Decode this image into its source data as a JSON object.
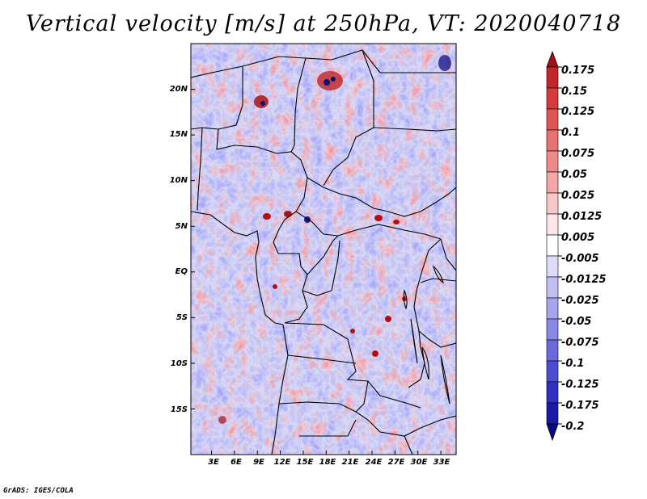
{
  "title": "Vertical velocity [m/s] at 250hPa, VT: 2020040718",
  "footer": "GrADS: IGES/COLA",
  "map": {
    "lat_ticks": [
      "20N",
      "15N",
      "10N",
      "5N",
      "EQ",
      "5S",
      "10S",
      "15S"
    ],
    "lon_ticks": [
      "3E",
      "6E",
      "9E",
      "12E",
      "15E",
      "18E",
      "21E",
      "24E",
      "27E",
      "30E",
      "33E"
    ],
    "lon_range": [
      0,
      35
    ],
    "lat_range": [
      -20,
      25
    ]
  },
  "colorbar": {
    "labels": [
      "0.175",
      "0.15",
      "0.125",
      "0.1",
      "0.075",
      "0.05",
      "0.025",
      "0.0125",
      "0.005",
      "-0.005",
      "-0.0125",
      "-0.025",
      "-0.05",
      "-0.075",
      "-0.1",
      "-0.125",
      "-0.175",
      "-0.2"
    ],
    "colors": [
      "#a50f15",
      "#c0262b",
      "#d73a3a",
      "#e05555",
      "#e87070",
      "#ee8a8a",
      "#f4a6a6",
      "#f8c8c8",
      "#fce6e6",
      "#ffffff",
      "#dcdcfa",
      "#c0c0f5",
      "#a5a5ee",
      "#8888e6",
      "#6a6ade",
      "#4d4dd2",
      "#3030c0",
      "#1a1aa5",
      "#0a0a80"
    ]
  },
  "colors": {
    "positive": "#e23b3b",
    "negative": "#3b3be2",
    "neutral": "#ffffff",
    "borders": "#000000"
  }
}
